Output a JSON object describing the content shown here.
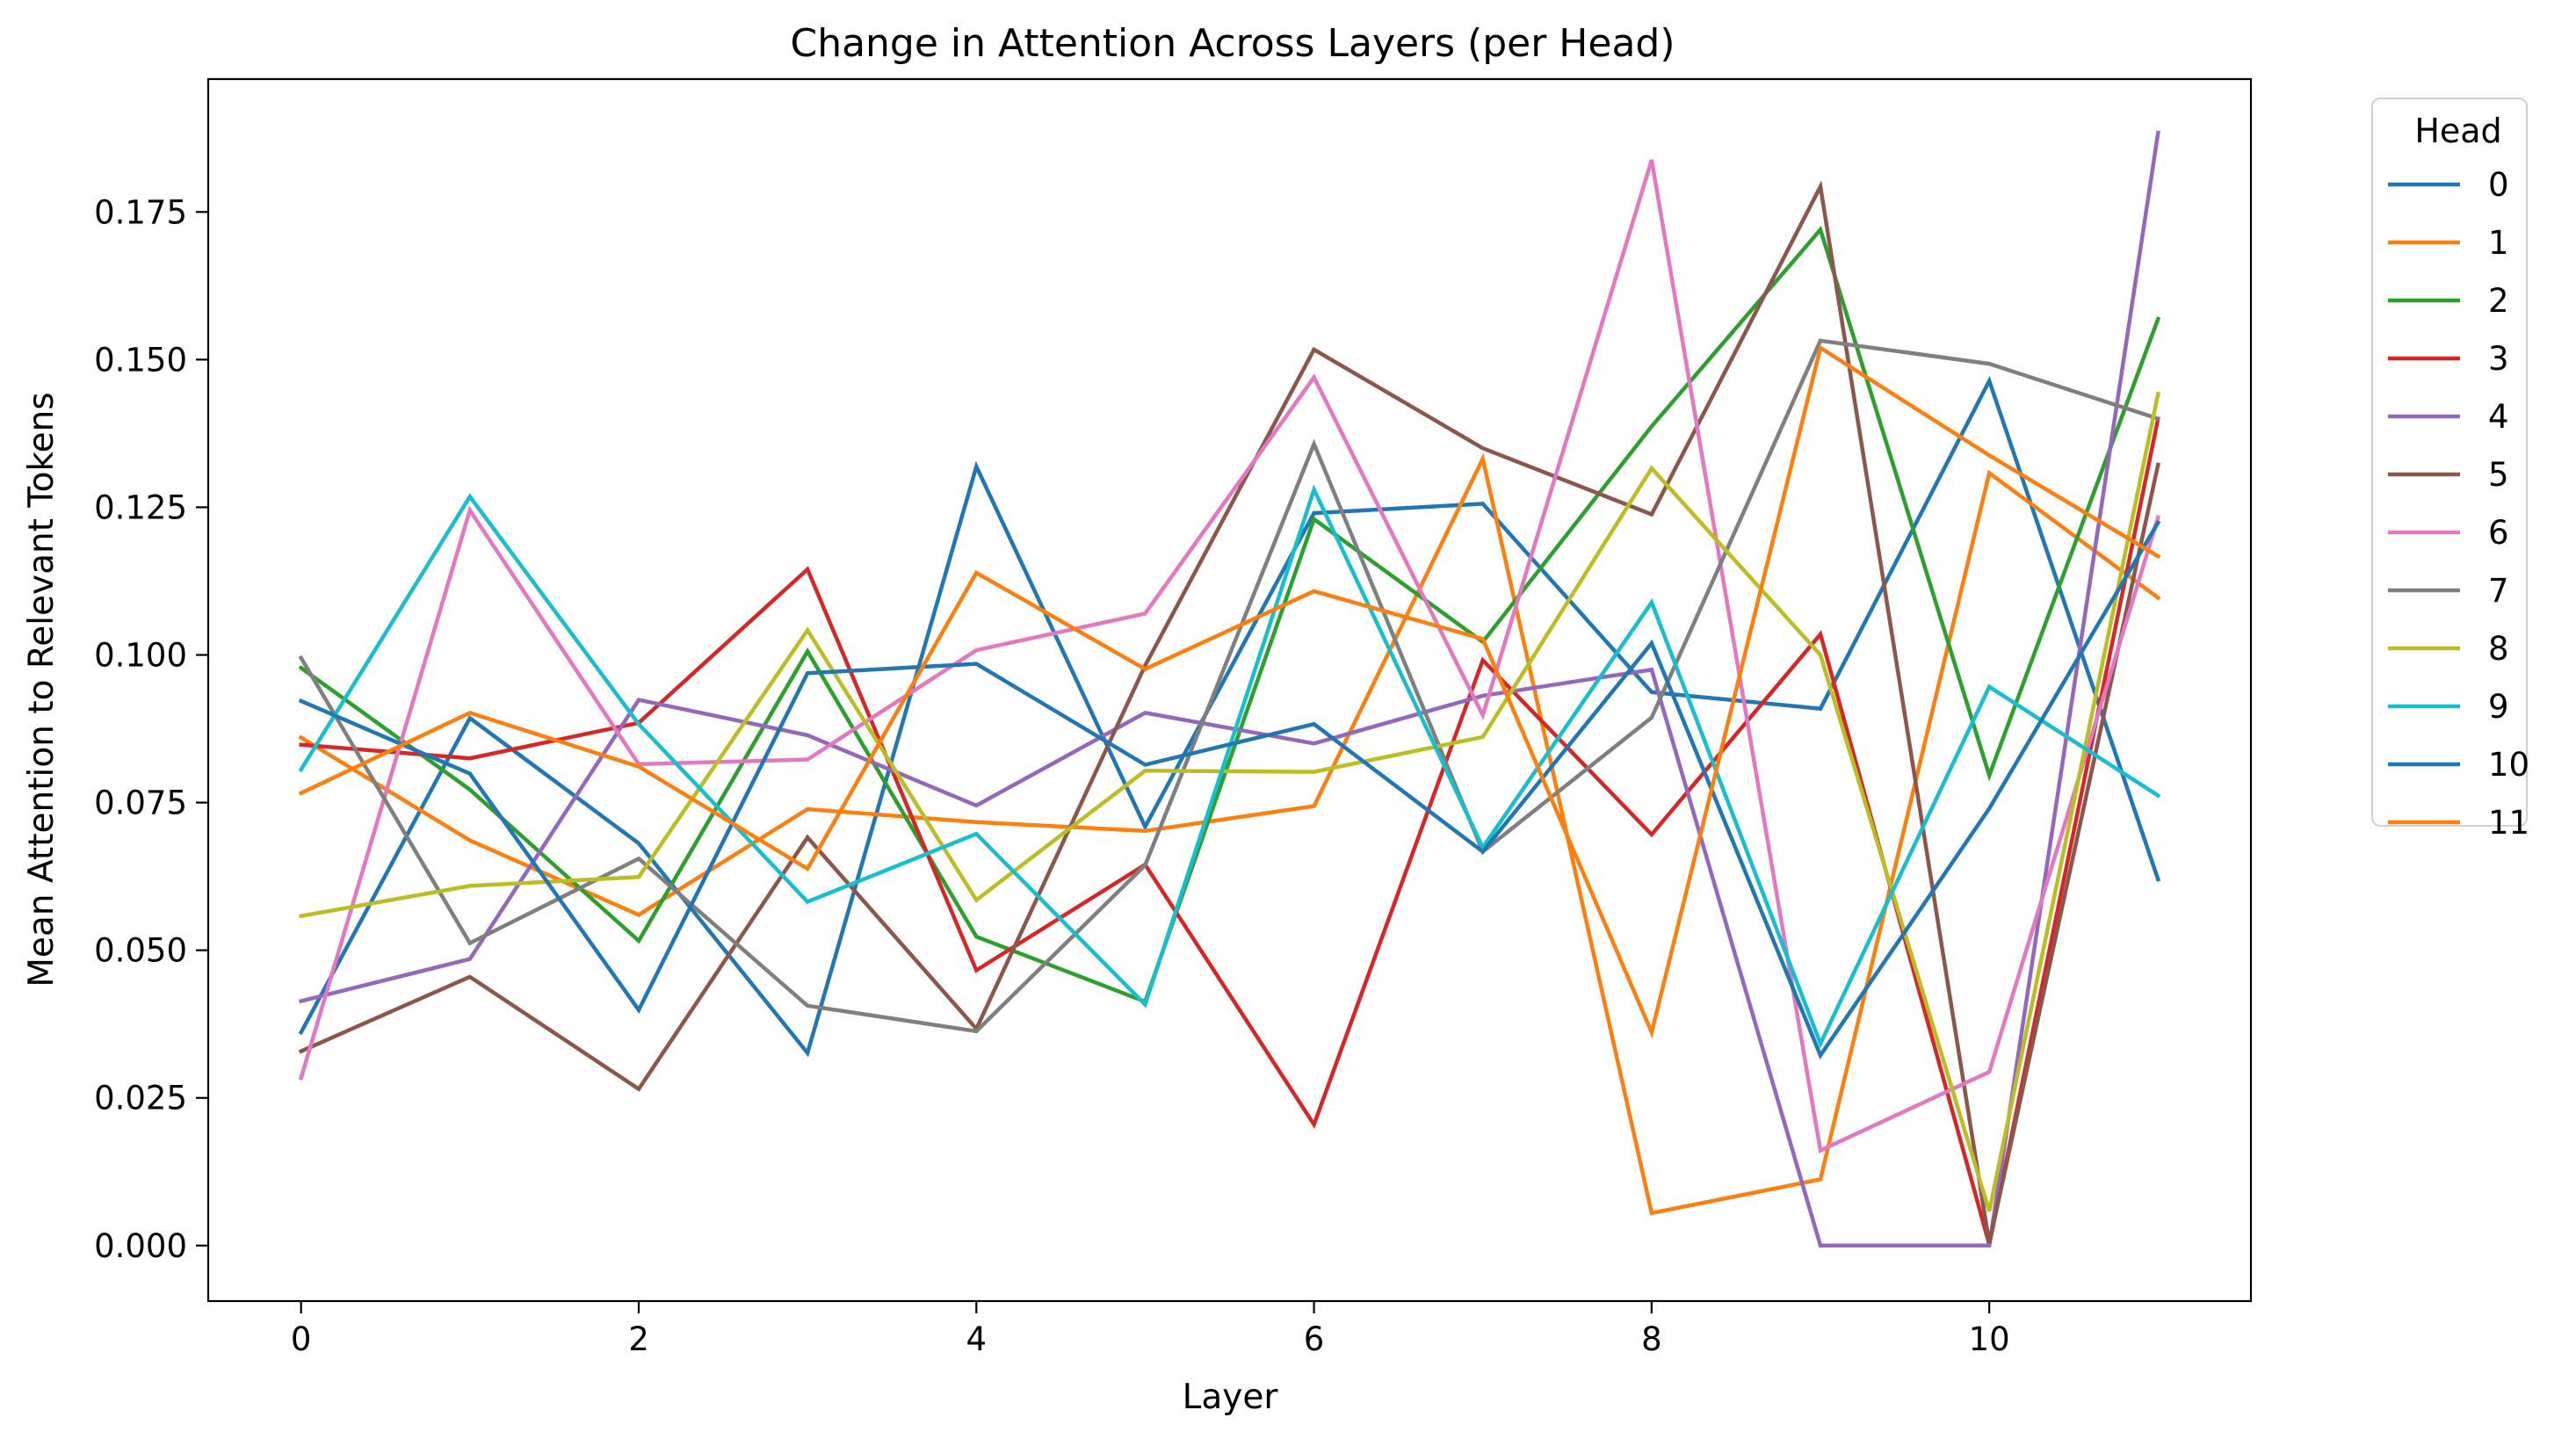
{
  "chart_data": {
    "type": "line",
    "title": "Change in Attention Across Layers (per Head)",
    "xlabel": "Layer",
    "ylabel": "Mean Attention to Relevant Tokens",
    "xlim": [
      -0.55,
      11.55
    ],
    "ylim": [
      -0.0094,
      0.1975
    ],
    "xticks": [
      0,
      2,
      4,
      6,
      8,
      10
    ],
    "xtick_labels": [
      "0",
      "2",
      "4",
      "6",
      "8",
      "10"
    ],
    "yticks": [
      0.0,
      0.025,
      0.05,
      0.075,
      0.1,
      0.125,
      0.15,
      0.175
    ],
    "ytick_labels": [
      "0.000",
      "0.025",
      "0.050",
      "0.075",
      "0.100",
      "0.125",
      "0.150",
      "0.175"
    ],
    "grid": false,
    "legend": {
      "title": "Head",
      "placement": "outside-right"
    },
    "x": [
      0,
      1,
      2,
      3,
      4,
      5,
      6,
      7,
      8,
      9,
      10,
      11
    ],
    "series": [
      {
        "name": "0",
        "color": "#1f77b4",
        "values": [
          0.0361,
          0.0893,
          0.0681,
          0.0326,
          0.1319,
          0.0709,
          0.124,
          0.1256,
          0.0937,
          0.0909,
          0.1464,
          0.062
        ]
      },
      {
        "name": "1",
        "color": "#ff7f0e",
        "values": [
          0.086,
          0.0686,
          0.056,
          0.0739,
          0.0717,
          0.0702,
          0.0744,
          0.1332,
          0.0055,
          0.0112,
          0.1308,
          0.1097
        ]
      },
      {
        "name": "2",
        "color": "#2ca02c",
        "values": [
          0.0978,
          0.0772,
          0.0516,
          0.1006,
          0.0523,
          0.0413,
          0.123,
          0.1022,
          0.1387,
          0.172,
          0.0796,
          0.1569
        ]
      },
      {
        "name": "3",
        "color": "#d62728",
        "values": [
          0.0848,
          0.0825,
          0.0885,
          0.1145,
          0.0466,
          0.0645,
          0.0205,
          0.0991,
          0.0696,
          0.1035,
          0.0002,
          0.14
        ]
      },
      {
        "name": "4",
        "color": "#9467bd",
        "values": [
          0.0414,
          0.0485,
          0.0924,
          0.0864,
          0.0745,
          0.0902,
          0.085,
          0.0931,
          0.0975,
          0.0,
          0.0,
          0.1884
        ]
      },
      {
        "name": "5",
        "color": "#8c564b",
        "values": [
          0.0329,
          0.0455,
          0.0265,
          0.0691,
          0.0367,
          0.0982,
          0.1517,
          0.135,
          0.1238,
          0.1793,
          0.0004,
          0.1322
        ]
      },
      {
        "name": "6",
        "color": "#e377c2",
        "values": [
          0.0284,
          0.1245,
          0.0815,
          0.0823,
          0.1008,
          0.107,
          0.147,
          0.0898,
          0.1838,
          0.0161,
          0.0294,
          0.1233
        ]
      },
      {
        "name": "7",
        "color": "#7f7f7f",
        "values": [
          0.0995,
          0.0512,
          0.0655,
          0.0406,
          0.0363,
          0.0644,
          0.1357,
          0.0667,
          0.0894,
          0.1532,
          0.1493,
          0.14
        ]
      },
      {
        "name": "8",
        "color": "#bcbd22",
        "values": [
          0.0558,
          0.0609,
          0.0624,
          0.1042,
          0.0585,
          0.0804,
          0.0802,
          0.0861,
          0.1316,
          0.1,
          0.0058,
          0.1442
        ]
      },
      {
        "name": "9",
        "color": "#17becf",
        "values": [
          0.0806,
          0.1268,
          0.0883,
          0.0582,
          0.0697,
          0.0408,
          0.128,
          0.0674,
          0.1089,
          0.0342,
          0.0946,
          0.0762
        ]
      },
      {
        "name": "10",
        "color": "#1f77b4",
        "values": [
          0.0922,
          0.0799,
          0.0399,
          0.0969,
          0.0985,
          0.0814,
          0.0883,
          0.0667,
          0.102,
          0.0322,
          0.074,
          0.1224
        ]
      },
      {
        "name": "11",
        "color": "#ff7f0e",
        "values": [
          0.0766,
          0.0902,
          0.0811,
          0.0638,
          0.1139,
          0.0976,
          0.1108,
          0.1027,
          0.0361,
          0.152,
          0.1338,
          0.1167
        ]
      }
    ]
  }
}
